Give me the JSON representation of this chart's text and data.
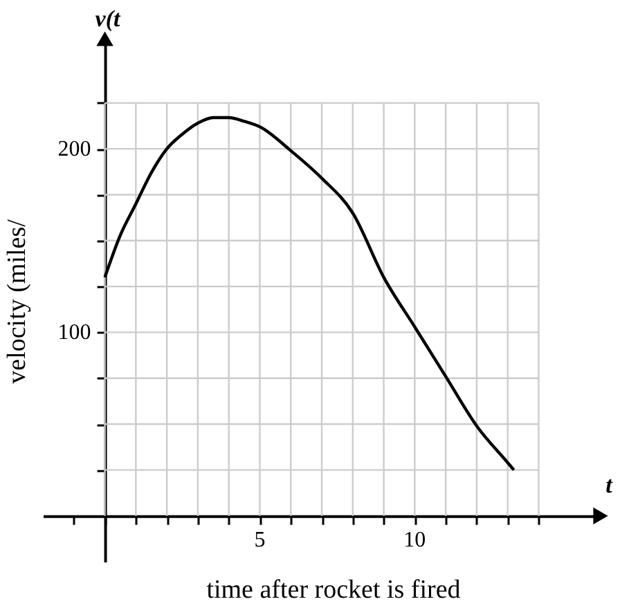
{
  "chart_data": {
    "type": "line",
    "xlabel": "time after rocket is fired",
    "ylabel": "velocity (miles/",
    "annotations": [
      "v(t",
      "t"
    ],
    "x": [
      0,
      0.5,
      1,
      1.5,
      2,
      2.5,
      3,
      3.5,
      4,
      4.5,
      5,
      6,
      7,
      8,
      9,
      10,
      11,
      12,
      13,
      13.2
    ],
    "series": [
      {
        "color": "#000000",
        "values": [
          130,
          153,
          170,
          187,
          200,
          208,
          214,
          217,
          217,
          215,
          212,
          199,
          184,
          165,
          130,
          103,
          76,
          49,
          29,
          25
        ]
      }
    ],
    "xlim": [
      -2,
      16
    ],
    "ylim": [
      -25,
      260
    ],
    "xticks": [
      {
        "value": -1,
        "label": null
      },
      {
        "value": 0,
        "label": null
      },
      {
        "value": 1,
        "label": null
      },
      {
        "value": 2,
        "label": null
      },
      {
        "value": 3,
        "label": null
      },
      {
        "value": 4,
        "label": null
      },
      5,
      {
        "value": 6,
        "label": null
      },
      {
        "value": 7,
        "label": null
      },
      {
        "value": 8,
        "label": null
      },
      {
        "value": 9,
        "label": null
      },
      10,
      {
        "value": 11,
        "label": null
      },
      {
        "value": 12,
        "label": null
      },
      {
        "value": 13,
        "label": null
      },
      {
        "value": 14,
        "label": null
      }
    ],
    "yticks": [
      {
        "value": 25,
        "label": null
      },
      {
        "value": 50,
        "label": null
      },
      {
        "value": 75,
        "label": null
      },
      100,
      {
        "value": 125,
        "label": null
      },
      {
        "value": 150,
        "label": null
      },
      {
        "value": 175,
        "label": null
      },
      200,
      {
        "value": 225,
        "label": null
      }
    ],
    "grid": true,
    "marker": "none",
    "line_style": "solid"
  }
}
